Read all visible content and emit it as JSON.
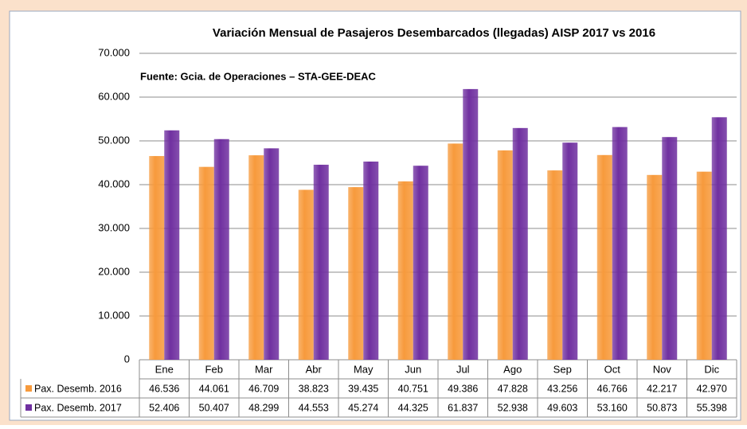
{
  "chart_data": {
    "type": "bar",
    "title": "Variación Mensual de Pasajeros Desembarcados (llegadas) AISP 2017 vs 2016",
    "annotation": "Fuente: Gcia. de Operaciones – STA-GEE-DEAC",
    "categories": [
      "Ene",
      "Feb",
      "Mar",
      "Abr",
      "May",
      "Jun",
      "Jul",
      "Ago",
      "Sep",
      "Oct",
      "Nov",
      "Dic"
    ],
    "series": [
      {
        "name": "Pax. Desemb. 2016",
        "color": "#f79a3c",
        "values": [
          46536,
          44061,
          46709,
          38823,
          39435,
          40751,
          49386,
          47828,
          43256,
          46766,
          42217,
          42970
        ],
        "value_labels": [
          "46.536",
          "44.061",
          "46.709",
          "38.823",
          "39.435",
          "40.751",
          "49.386",
          "47.828",
          "43.256",
          "46.766",
          "42.217",
          "42.970"
        ]
      },
      {
        "name": "Pax. Desemb. 2017",
        "color": "#7030a0",
        "values": [
          52406,
          50407,
          48299,
          44553,
          45274,
          44325,
          61837,
          52938,
          49603,
          53160,
          50873,
          55398
        ],
        "value_labels": [
          "52.406",
          "50.407",
          "48.299",
          "44.553",
          "45.274",
          "44.325",
          "61.837",
          "52.938",
          "49.603",
          "53.160",
          "50.873",
          "55.398"
        ]
      }
    ],
    "ylim": [
      0,
      70000
    ],
    "yticks": [
      0,
      {
        "value": 10000,
        "label": "10.000"
      },
      {
        "value": 20000,
        "label": "20.000"
      },
      {
        "value": 30000,
        "label": "30.000"
      },
      {
        "value": 40000,
        "label": "40.000"
      },
      {
        "value": 50000,
        "label": "50.000"
      },
      {
        "value": 60000,
        "label": "60.000"
      },
      {
        "value": 70000,
        "label": "70.000"
      }
    ],
    "grid": true
  }
}
